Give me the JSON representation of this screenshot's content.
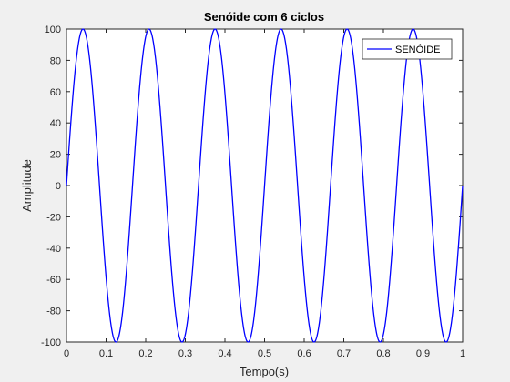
{
  "chart_data": {
    "type": "line",
    "title": "Senóide com 6 ciclos",
    "xlabel": "Tempo(s)",
    "ylabel": "Amplitude",
    "xlim": [
      0,
      1
    ],
    "ylim": [
      -100,
      100
    ],
    "xticks": [
      0,
      0.1,
      0.2,
      0.3,
      0.4,
      0.5,
      0.6,
      0.7,
      0.8,
      0.9,
      1
    ],
    "xtick_labels": [
      "0",
      "0.1",
      "0.2",
      "0.3",
      "0.4",
      "0.5",
      "0.6",
      "0.7",
      "0.8",
      "0.9",
      "1"
    ],
    "yticks": [
      -100,
      -80,
      -60,
      -40,
      -20,
      0,
      20,
      40,
      60,
      80,
      100
    ],
    "ytick_labels": [
      "-100",
      "-80",
      "-60",
      "-40",
      "-20",
      "0",
      "20",
      "40",
      "60",
      "80",
      "100"
    ],
    "grid": false,
    "legend_position": "top-right",
    "series": [
      {
        "name": "SENÓIDE",
        "color": "#0000ff",
        "function": "100*sin(2*pi*6*t)",
        "amplitude": 100,
        "cycles": 6
      }
    ]
  }
}
